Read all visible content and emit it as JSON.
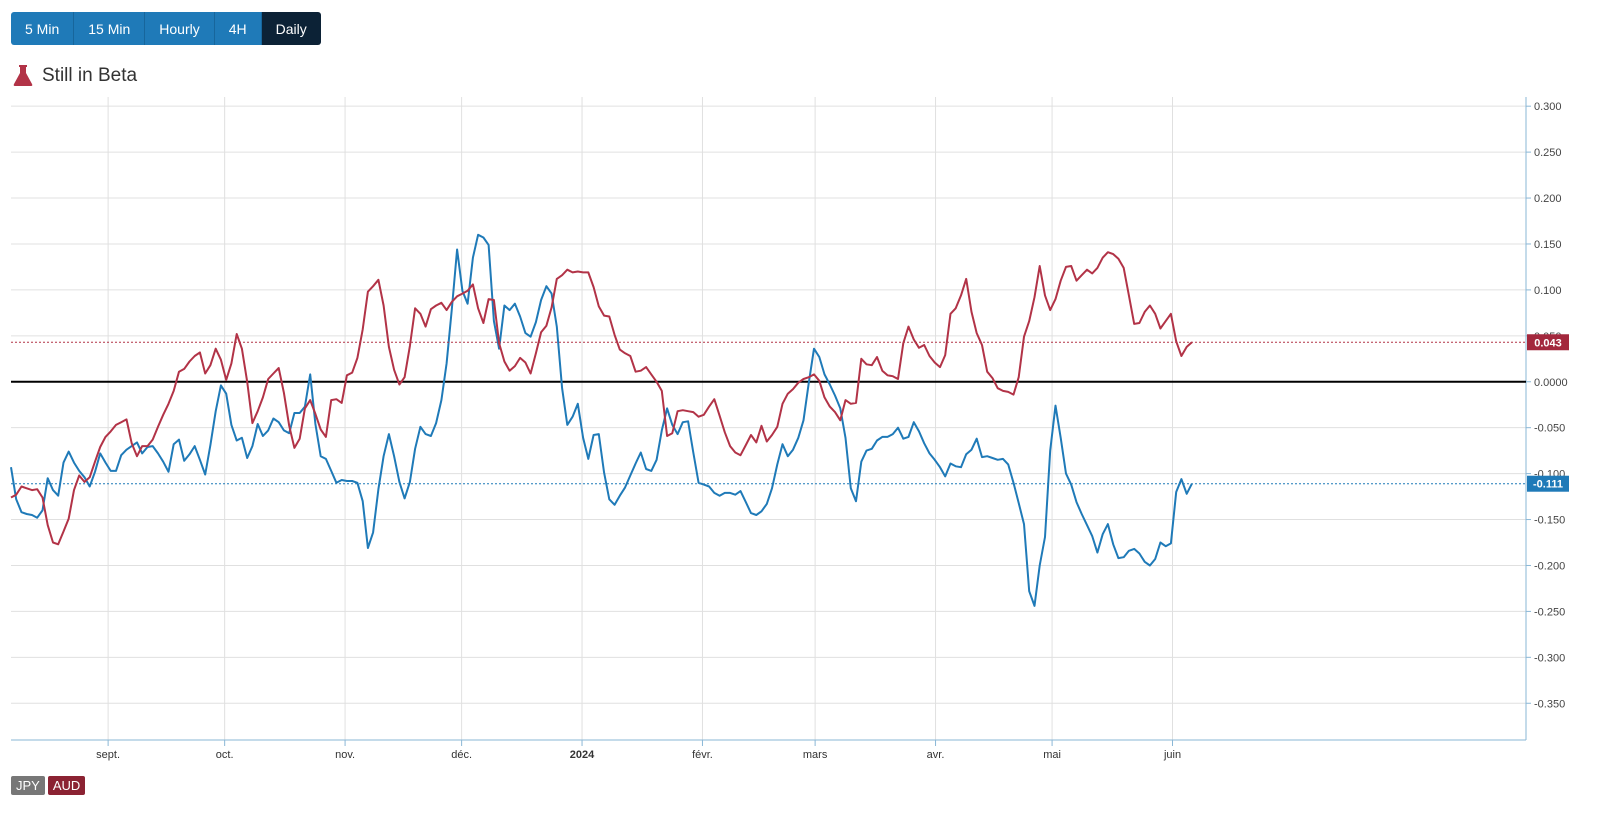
{
  "timeframes": {
    "items": [
      {
        "label": "5 Min",
        "active": false
      },
      {
        "label": "15 Min",
        "active": false
      },
      {
        "label": "Hourly",
        "active": false
      },
      {
        "label": "4H",
        "active": false
      },
      {
        "label": "Daily",
        "active": true
      }
    ]
  },
  "beta_label": "Still in Beta",
  "legend": [
    {
      "label": "JPY",
      "color": "#777777"
    },
    {
      "label": "AUD",
      "color": "#8b2232"
    }
  ],
  "colors": {
    "jpy_line": "#1f7ab8",
    "aud_line": "#b23347",
    "zero_line": "#000000",
    "grid": "#e0e0e0",
    "axis": "#8ab7d6"
  },
  "chart_data": {
    "type": "line",
    "x_start": "2023-08-07",
    "x_end": "2024-06-06",
    "x_visible_end": "2024-08-31",
    "x_ticks": [
      {
        "date": "2023-09-01",
        "label": "sept.",
        "bold": false
      },
      {
        "date": "2023-10-01",
        "label": "oct.",
        "bold": false
      },
      {
        "date": "2023-11-01",
        "label": "nov.",
        "bold": false
      },
      {
        "date": "2023-12-01",
        "label": "déc.",
        "bold": false
      },
      {
        "date": "2024-01-01",
        "label": "2024",
        "bold": true
      },
      {
        "date": "2024-02-01",
        "label": "févr.",
        "bold": false
      },
      {
        "date": "2024-03-01",
        "label": "mars",
        "bold": false
      },
      {
        "date": "2024-04-01",
        "label": "avr.",
        "bold": false
      },
      {
        "date": "2024-05-01",
        "label": "mai",
        "bold": false
      },
      {
        "date": "2024-06-01",
        "label": "juin",
        "bold": false
      }
    ],
    "y_ticks": [
      "0.300",
      "0.250",
      "0.200",
      "0.150",
      "0.100",
      "0.050",
      "0.0000",
      "-0.050",
      "-0.100",
      "-0.150",
      "-0.200",
      "-0.250",
      "-0.300",
      "-0.350"
    ],
    "ylim": [
      -0.39,
      0.31
    ],
    "series": [
      {
        "name": "JPY",
        "current": -0.111,
        "current_label": "-0.111",
        "values": [
          -0.093,
          -0.128,
          -0.142,
          -0.144,
          -0.145,
          -0.148,
          -0.14,
          -0.105,
          -0.118,
          -0.124,
          -0.088,
          -0.076,
          -0.088,
          -0.097,
          -0.104,
          -0.114,
          -0.098,
          -0.078,
          -0.088,
          -0.097,
          -0.097,
          -0.08,
          -0.074,
          -0.07,
          -0.066,
          -0.078,
          -0.071,
          -0.07,
          -0.078,
          -0.087,
          -0.098,
          -0.068,
          -0.063,
          -0.086,
          -0.079,
          -0.07,
          -0.085,
          -0.101,
          -0.069,
          -0.032,
          -0.004,
          -0.013,
          -0.047,
          -0.064,
          -0.061,
          -0.083,
          -0.07,
          -0.046,
          -0.059,
          -0.053,
          -0.04,
          -0.044,
          -0.053,
          -0.056,
          -0.034,
          -0.034,
          -0.027,
          0.008,
          -0.046,
          -0.081,
          -0.084,
          -0.097,
          -0.11,
          -0.107,
          -0.108,
          -0.108,
          -0.11,
          -0.13,
          -0.181,
          -0.164,
          -0.117,
          -0.081,
          -0.057,
          -0.081,
          -0.109,
          -0.127,
          -0.109,
          -0.073,
          -0.049,
          -0.057,
          -0.059,
          -0.045,
          -0.02,
          0.02,
          0.08,
          0.144,
          0.099,
          0.085,
          0.135,
          0.16,
          0.157,
          0.149,
          0.066,
          0.036,
          0.083,
          0.078,
          0.085,
          0.071,
          0.053,
          0.049,
          0.065,
          0.089,
          0.104,
          0.096,
          0.06,
          -0.007,
          -0.047,
          -0.038,
          -0.024,
          -0.061,
          -0.084,
          -0.058,
          -0.057,
          -0.099,
          -0.128,
          -0.134,
          -0.124,
          -0.115,
          -0.102,
          -0.089,
          -0.077,
          -0.095,
          -0.097,
          -0.085,
          -0.053,
          -0.029,
          -0.047,
          -0.057,
          -0.044,
          -0.043,
          -0.077,
          -0.11,
          -0.112,
          -0.114,
          -0.121,
          -0.124,
          -0.121,
          -0.121,
          -0.123,
          -0.119,
          -0.131,
          -0.143,
          -0.145,
          -0.141,
          -0.133,
          -0.116,
          -0.09,
          -0.068,
          -0.081,
          -0.074,
          -0.061,
          -0.042,
          -0.001,
          0.036,
          0.027,
          0.008,
          -0.003,
          -0.015,
          -0.029,
          -0.061,
          -0.116,
          -0.13,
          -0.087,
          -0.075,
          -0.073,
          -0.064,
          -0.06,
          -0.06,
          -0.057,
          -0.05,
          -0.062,
          -0.06,
          -0.044,
          -0.054,
          -0.067,
          -0.078,
          -0.085,
          -0.093,
          -0.103,
          -0.089,
          -0.092,
          -0.093,
          -0.079,
          -0.074,
          -0.062,
          -0.082,
          -0.081,
          -0.083,
          -0.085,
          -0.084,
          -0.09,
          -0.11,
          -0.132,
          -0.155,
          -0.228,
          -0.244,
          -0.2,
          -0.169,
          -0.075,
          -0.026,
          -0.061,
          -0.1,
          -0.112,
          -0.131,
          -0.144,
          -0.156,
          -0.168,
          -0.186,
          -0.166,
          -0.155,
          -0.177,
          -0.192,
          -0.191,
          -0.184,
          -0.182,
          -0.187,
          -0.196,
          -0.2,
          -0.193,
          -0.175,
          -0.179,
          -0.176,
          -0.12,
          -0.106,
          -0.122,
          -0.111
        ]
      },
      {
        "name": "AUD",
        "current": 0.043,
        "current_label": "0.043",
        "values": [
          -0.126,
          -0.123,
          -0.114,
          -0.116,
          -0.118,
          -0.117,
          -0.126,
          -0.156,
          -0.175,
          -0.177,
          -0.163,
          -0.149,
          -0.118,
          -0.102,
          -0.109,
          -0.104,
          -0.087,
          -0.071,
          -0.06,
          -0.054,
          -0.047,
          -0.044,
          -0.041,
          -0.067,
          -0.081,
          -0.07,
          -0.07,
          -0.063,
          -0.049,
          -0.036,
          -0.024,
          -0.01,
          0.011,
          0.014,
          0.022,
          0.028,
          0.032,
          0.009,
          0.018,
          0.036,
          0.024,
          0.002,
          0.02,
          0.052,
          0.036,
          0.0,
          -0.045,
          -0.032,
          -0.017,
          0.003,
          0.009,
          0.015,
          -0.012,
          -0.048,
          -0.072,
          -0.062,
          -0.029,
          -0.02,
          -0.035,
          -0.052,
          -0.06,
          -0.02,
          -0.019,
          -0.023,
          0.007,
          0.01,
          0.026,
          0.057,
          0.098,
          0.104,
          0.111,
          0.083,
          0.038,
          0.013,
          -0.003,
          0.005,
          0.039,
          0.08,
          0.074,
          0.06,
          0.079,
          0.083,
          0.086,
          0.078,
          0.087,
          0.093,
          0.096,
          0.099,
          0.106,
          0.08,
          0.064,
          0.09,
          0.089,
          0.042,
          0.022,
          0.012,
          0.017,
          0.026,
          0.021,
          0.009,
          0.031,
          0.054,
          0.061,
          0.081,
          0.112,
          0.116,
          0.122,
          0.119,
          0.12,
          0.119,
          0.119,
          0.103,
          0.082,
          0.072,
          0.071,
          0.051,
          0.035,
          0.031,
          0.028,
          0.011,
          0.012,
          0.016,
          0.008,
          0.0,
          -0.01,
          -0.059,
          -0.056,
          -0.032,
          -0.031,
          -0.032,
          -0.033,
          -0.038,
          -0.036,
          -0.027,
          -0.019,
          -0.037,
          -0.055,
          -0.07,
          -0.077,
          -0.08,
          -0.069,
          -0.058,
          -0.066,
          -0.048,
          -0.065,
          -0.058,
          -0.049,
          -0.024,
          -0.013,
          -0.008,
          -0.001,
          0.003,
          0.005,
          0.008,
          0.001,
          -0.017,
          -0.027,
          -0.033,
          -0.042,
          -0.02,
          -0.024,
          -0.023,
          0.025,
          0.019,
          0.018,
          0.027,
          0.012,
          0.007,
          0.006,
          0.003,
          0.042,
          0.06,
          0.046,
          0.037,
          0.04,
          0.028,
          0.021,
          0.016,
          0.029,
          0.074,
          0.08,
          0.094,
          0.112,
          0.076,
          0.053,
          0.04,
          0.011,
          0.004,
          -0.007,
          -0.01,
          -0.011,
          -0.014,
          0.005,
          0.049,
          0.066,
          0.092,
          0.126,
          0.094,
          0.078,
          0.09,
          0.11,
          0.125,
          0.126,
          0.11,
          0.116,
          0.122,
          0.118,
          0.124,
          0.135,
          0.141,
          0.139,
          0.134,
          0.124,
          0.094,
          0.063,
          0.064,
          0.076,
          0.083,
          0.074,
          0.058,
          0.066,
          0.074,
          0.044,
          0.028,
          0.038,
          0.043
        ]
      }
    ]
  }
}
